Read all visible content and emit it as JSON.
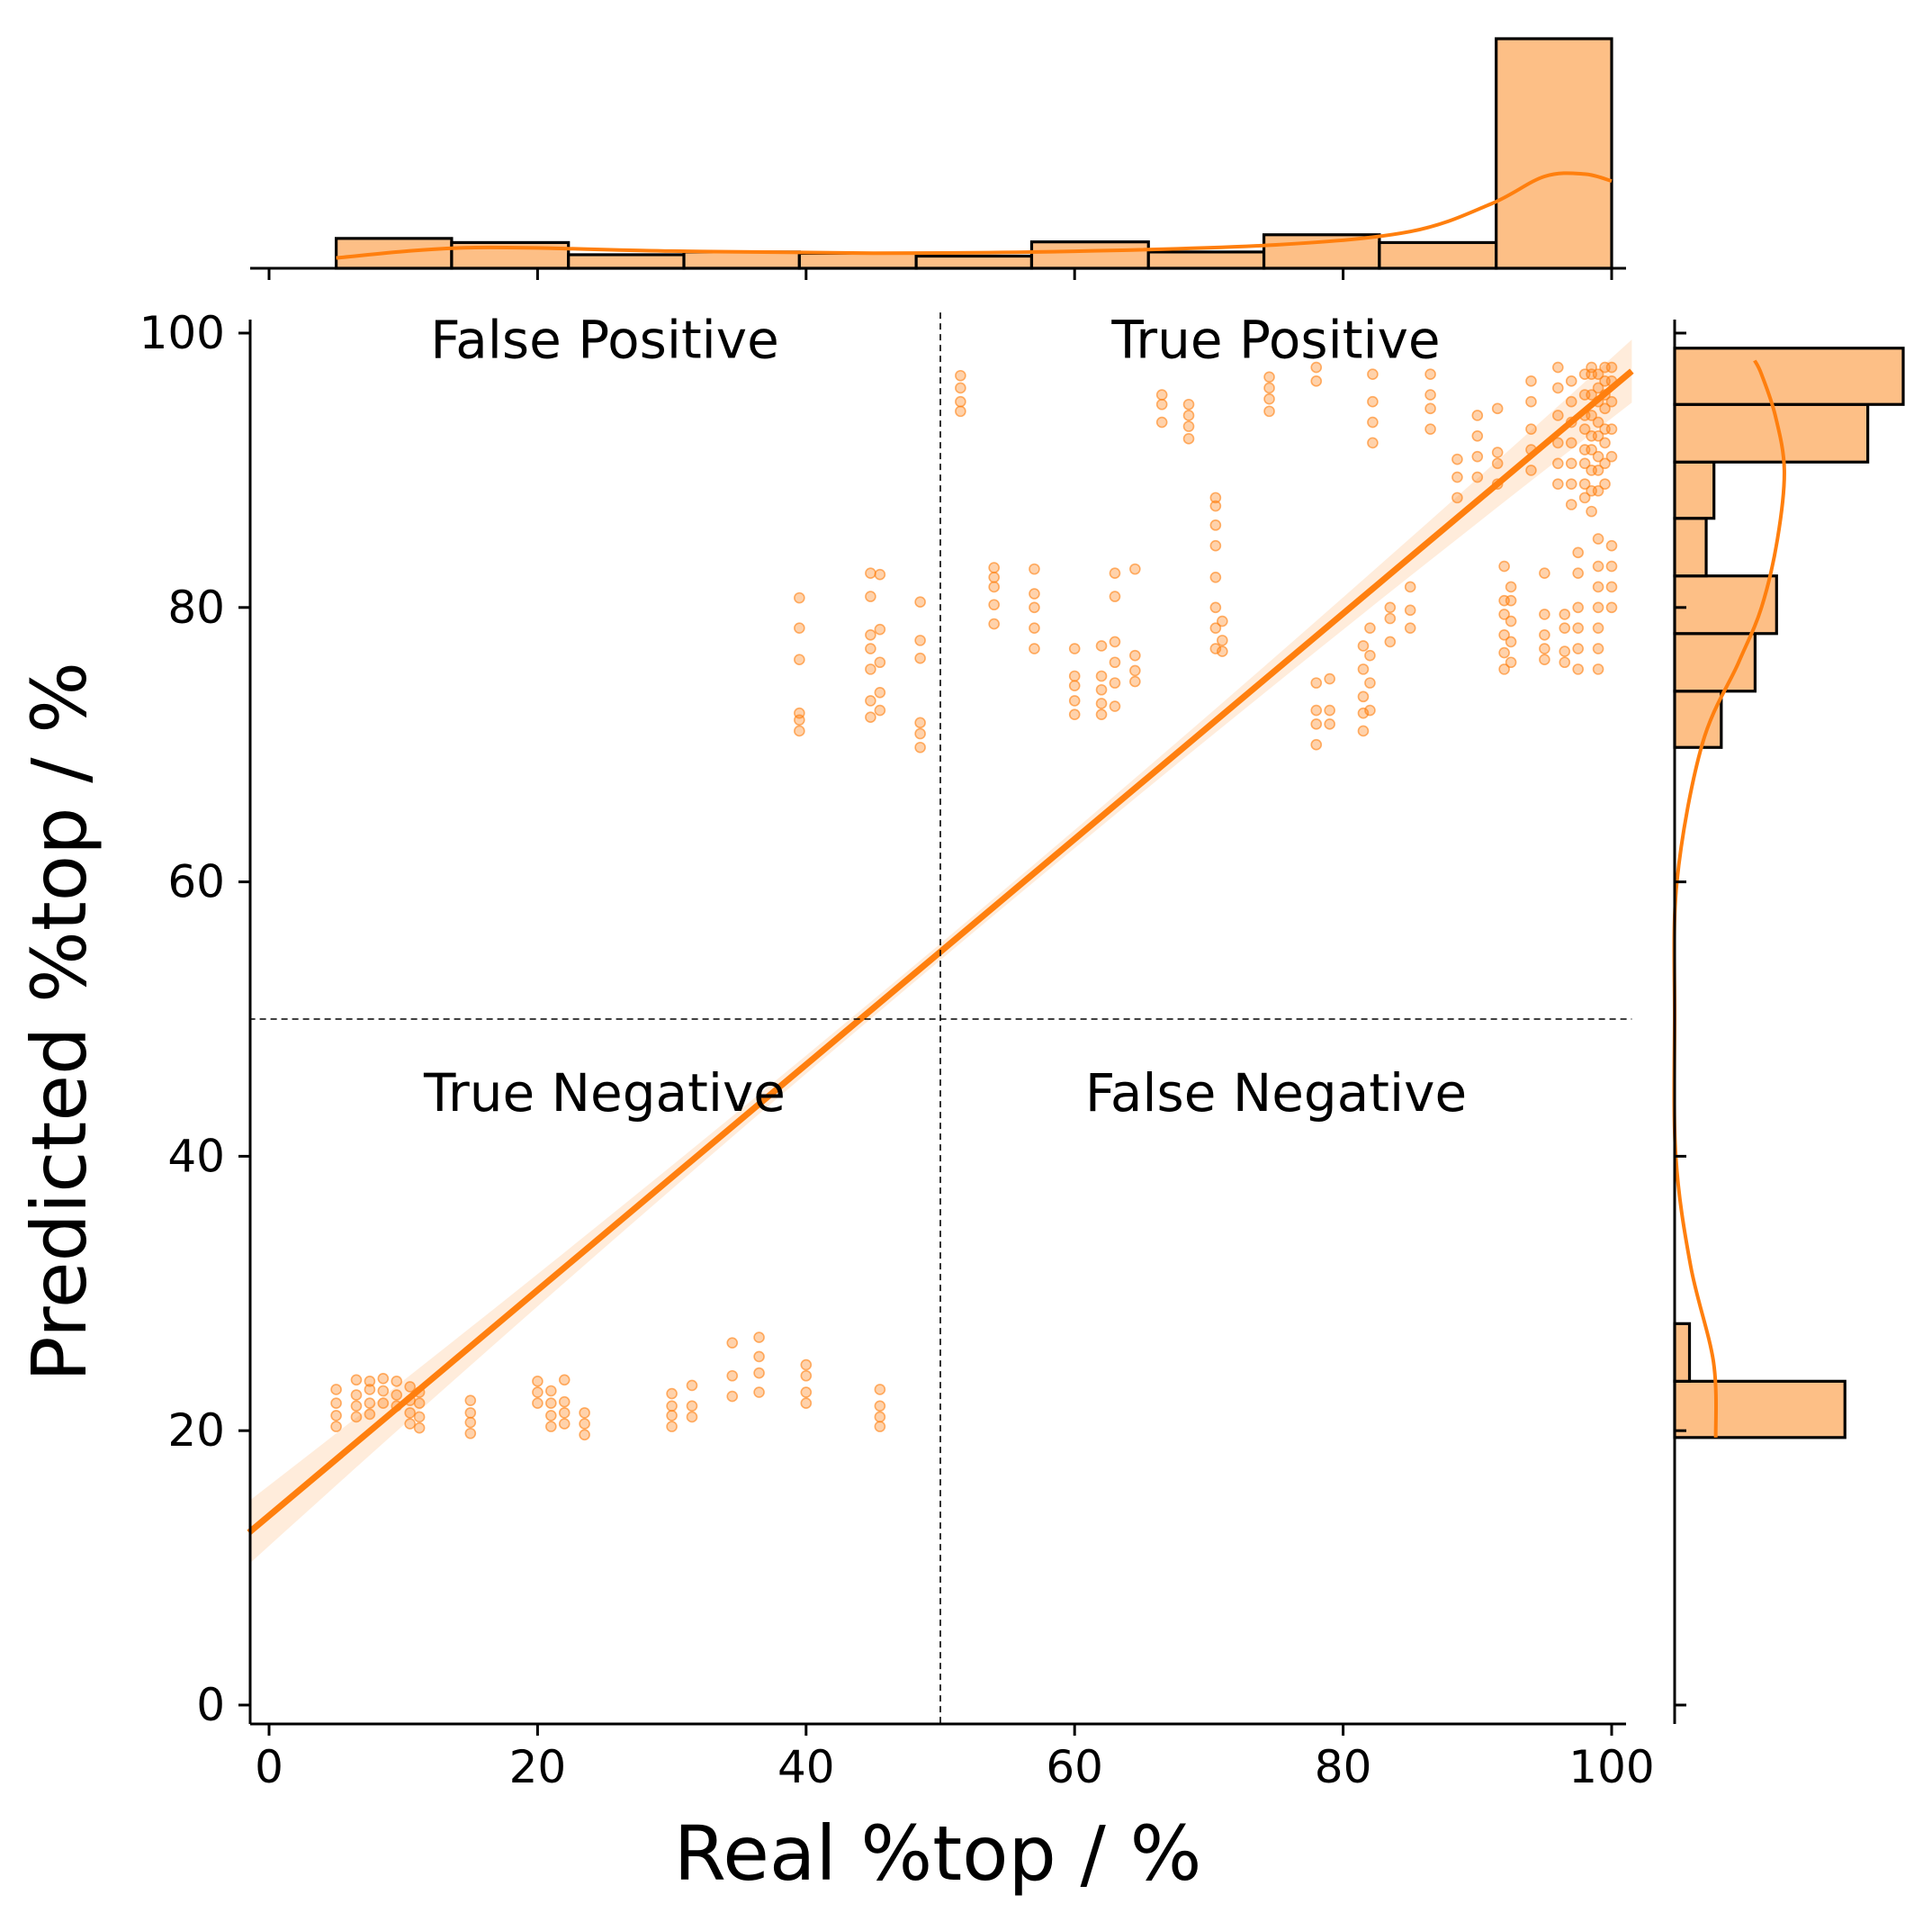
{
  "chart_data": {
    "type": "scatter",
    "subtype": "jointplot with regression fit and marginal histograms with KDE",
    "xlabel": "Real %top / %",
    "ylabel": "Predicted %top / %",
    "xlim": [
      -1.5,
      101.5
    ],
    "ylim": [
      -1.5,
      101.5
    ],
    "xticks": [
      "0",
      "20",
      "40",
      "60",
      "80",
      "100"
    ],
    "yticks": [
      "0",
      "20",
      "40",
      "60",
      "80",
      "100"
    ],
    "threshold": {
      "x": 50,
      "y": 50,
      "style": "dashed"
    },
    "quadrant_labels": {
      "top_left": "False Positive",
      "top_right": "True Positive",
      "bottom_left": "True Negative",
      "bottom_right": "False Negative"
    },
    "color": "#ff7f0e",
    "bar_fill": "#fdbf86",
    "regression": {
      "intercept": 13.8,
      "slope": 0.822,
      "ci_halfwidth_ends": 2.2,
      "ci_halfwidth_mid": 0.6
    },
    "point_columns": [
      {
        "x": 5,
        "y": [
          20.3,
          21.1,
          22.0,
          23.0
        ]
      },
      {
        "x": 6.5,
        "y": [
          21.0,
          21.8,
          22.6,
          23.7
        ]
      },
      {
        "x": 7.5,
        "y": [
          21.2,
          22.0,
          23.0,
          23.6
        ]
      },
      {
        "x": 8.5,
        "y": [
          22.0,
          22.9,
          23.8
        ]
      },
      {
        "x": 9.5,
        "y": [
          21.8,
          22.6,
          23.6
        ]
      },
      {
        "x": 10.5,
        "y": [
          20.5,
          21.3,
          22.2,
          23.2
        ]
      },
      {
        "x": 11.2,
        "y": [
          20.2,
          21.0,
          22.0,
          22.8
        ]
      },
      {
        "x": 15,
        "y": [
          19.8,
          20.6,
          21.3,
          22.2
        ]
      },
      {
        "x": 20,
        "y": [
          22.0,
          22.8,
          23.6
        ]
      },
      {
        "x": 21,
        "y": [
          20.3,
          21.1,
          22.0,
          22.9
        ]
      },
      {
        "x": 22,
        "y": [
          20.5,
          21.3,
          22.1,
          23.7
        ]
      },
      {
        "x": 23.5,
        "y": [
          19.7,
          20.5,
          21.3
        ]
      },
      {
        "x": 30,
        "y": [
          20.3,
          21.1,
          21.8,
          22.7
        ]
      },
      {
        "x": 31.5,
        "y": [
          21.0,
          21.8,
          23.3
        ]
      },
      {
        "x": 34.5,
        "y": [
          22.5,
          24.0,
          26.4
        ]
      },
      {
        "x": 36.5,
        "y": [
          22.8,
          24.2,
          25.4,
          26.8
        ]
      },
      {
        "x": 40,
        "y": [
          22.0,
          22.8,
          24.0,
          24.8
        ]
      },
      {
        "x": 45.5,
        "y": [
          20.3,
          21.0,
          21.8,
          23.0
        ]
      },
      {
        "x": 39.5,
        "y": [
          71.0,
          71.8,
          72.3,
          76.2,
          78.5,
          80.7
        ]
      },
      {
        "x": 44.8,
        "y": [
          72.0,
          73.2,
          75.5,
          77.0,
          78.0,
          80.8,
          82.5
        ]
      },
      {
        "x": 45.5,
        "y": [
          72.5,
          73.8,
          76.0,
          78.4,
          82.4
        ]
      },
      {
        "x": 48.5,
        "y": [
          69.8,
          70.8,
          71.6,
          76.3,
          77.6,
          80.4
        ]
      },
      {
        "x": 51.5,
        "y": [
          94.3,
          95.0,
          96.0,
          96.9
        ]
      },
      {
        "x": 54,
        "y": [
          78.8,
          80.2,
          81.5,
          82.2,
          82.9
        ]
      },
      {
        "x": 57,
        "y": [
          77.0,
          78.5,
          80.0,
          81.0,
          82.8
        ]
      },
      {
        "x": 60,
        "y": [
          72.2,
          73.2,
          74.3,
          75.0,
          77.0
        ]
      },
      {
        "x": 62,
        "y": [
          72.2,
          73.0,
          74.0,
          75.0,
          77.2
        ]
      },
      {
        "x": 63,
        "y": [
          72.8,
          74.5,
          76.0,
          77.5,
          80.8,
          82.5
        ]
      },
      {
        "x": 64.5,
        "y": [
          74.6,
          75.4,
          76.5,
          82.8
        ]
      },
      {
        "x": 66.5,
        "y": [
          93.5,
          94.8,
          95.5
        ]
      },
      {
        "x": 68.5,
        "y": [
          92.3,
          93.2,
          94.0,
          94.8
        ]
      },
      {
        "x": 70.5,
        "y": [
          84.5,
          86.0,
          87.4,
          88.0
        ]
      },
      {
        "x": 70.5,
        "y": [
          77.0,
          78.5,
          80.0,
          82.2
        ]
      },
      {
        "x": 71,
        "y": [
          76.8,
          77.6,
          79.0
        ]
      },
      {
        "x": 74.5,
        "y": [
          94.3,
          95.2,
          96.0,
          96.8
        ]
      },
      {
        "x": 78,
        "y": [
          96.5,
          97.5
        ]
      },
      {
        "x": 78,
        "y": [
          70.0,
          71.5,
          72.5,
          74.5
        ]
      },
      {
        "x": 79,
        "y": [
          71.5,
          72.5,
          74.8
        ]
      },
      {
        "x": 81.5,
        "y": [
          71.0,
          72.3,
          73.5,
          75.5,
          77.2
        ]
      },
      {
        "x": 82,
        "y": [
          72.5,
          74.5,
          76.5,
          78.5
        ]
      },
      {
        "x": 82.2,
        "y": [
          92.0,
          93.5,
          95.0,
          97.0
        ]
      },
      {
        "x": 83.5,
        "y": [
          77.5,
          79.2,
          80.0
        ]
      },
      {
        "x": 85,
        "y": [
          78.5,
          79.8,
          81.5
        ]
      },
      {
        "x": 86.5,
        "y": [
          93.0,
          94.5,
          95.5,
          97.0
        ]
      },
      {
        "x": 88.5,
        "y": [
          88.0,
          89.5,
          90.8
        ]
      },
      {
        "x": 90,
        "y": [
          89.5,
          91.0,
          92.5,
          94.0
        ]
      },
      {
        "x": 91.5,
        "y": [
          89.0,
          90.5,
          91.3,
          94.5
        ]
      },
      {
        "x": 92,
        "y": [
          75.5,
          76.7,
          78.0,
          79.5,
          80.5,
          83.0
        ]
      },
      {
        "x": 92.5,
        "y": [
          76.0,
          77.5,
          79.0,
          80.5,
          81.5
        ]
      },
      {
        "x": 94,
        "y": [
          90.0,
          91.5,
          93.0,
          95.0,
          96.5
        ]
      },
      {
        "x": 95,
        "y": [
          76.2,
          77.0,
          78.0,
          79.5,
          82.5
        ]
      },
      {
        "x": 96,
        "y": [
          89.0,
          90.5,
          92.0,
          94.0,
          96.0,
          97.5
        ]
      },
      {
        "x": 96.5,
        "y": [
          76.0,
          76.8,
          78.5,
          79.5
        ]
      },
      {
        "x": 97,
        "y": [
          87.5,
          89.0,
          90.5,
          92.0,
          93.5,
          95.0,
          96.5
        ]
      },
      {
        "x": 97.5,
        "y": [
          75.5,
          77.0,
          78.5,
          80.0,
          82.5,
          84.0
        ]
      },
      {
        "x": 98,
        "y": [
          88.0,
          89.0,
          90.5,
          91.5,
          93.0,
          94.0,
          95.5,
          97.0
        ]
      },
      {
        "x": 98.5,
        "y": [
          87.0,
          88.5,
          90.0,
          91.5,
          92.5,
          94.0,
          95.5,
          97.0,
          97.5
        ]
      },
      {
        "x": 99,
        "y": [
          88.5,
          90.0,
          91.0,
          92.5,
          93.5,
          95.0,
          96.0,
          97.0
        ]
      },
      {
        "x": 99,
        "y": [
          75.5,
          77.0,
          78.5,
          80.0,
          81.5,
          83.0,
          85.0
        ]
      },
      {
        "x": 99.5,
        "y": [
          89.0,
          90.5,
          92.0,
          93.0,
          94.5,
          95.5,
          96.5,
          97.5
        ]
      },
      {
        "x": 100,
        "y": [
          80.0,
          81.5,
          83.0,
          84.5,
          91.0,
          93.0,
          95.0,
          96.5,
          97.5
        ]
      }
    ],
    "top_histogram": {
      "bin_edges": [
        5,
        13.6,
        22.3,
        30.9,
        39.5,
        48.2,
        56.8,
        65.5,
        74.1,
        82.7,
        91.4,
        100
      ],
      "heights": [
        13,
        11.2,
        5.9,
        7.1,
        6.5,
        5.3,
        11.5,
        7.1,
        14.6,
        11.2,
        100
      ],
      "kde": [
        [
          5,
          4.5
        ],
        [
          15,
          9
        ],
        [
          30,
          7.5
        ],
        [
          45,
          6.6
        ],
        [
          60,
          7.4
        ],
        [
          75,
          10.2
        ],
        [
          85,
          16
        ],
        [
          91,
          28
        ],
        [
          95,
          40
        ],
        [
          98,
          41
        ],
        [
          100,
          38
        ]
      ]
    },
    "right_histogram": {
      "bin_edges": [
        19.5,
        23.6,
        27.8,
        69.8,
        73.9,
        78.1,
        82.3,
        86.5,
        90.6,
        94.8,
        98.9
      ],
      "widths": [
        74.5,
        6.5,
        0,
        20.4,
        35.2,
        44.6,
        13.8,
        17.2,
        84.5,
        100
      ],
      "kde": [
        [
          19.5,
          18
        ],
        [
          25,
          17
        ],
        [
          32,
          7
        ],
        [
          40,
          0.5
        ],
        [
          50,
          0
        ],
        [
          60,
          1
        ],
        [
          70,
          12
        ],
        [
          76,
          28
        ],
        [
          80,
          38
        ],
        [
          85,
          45
        ],
        [
          90,
          48
        ],
        [
          94,
          44
        ],
        [
          97,
          38
        ],
        [
          98,
          35
        ]
      ]
    }
  }
}
